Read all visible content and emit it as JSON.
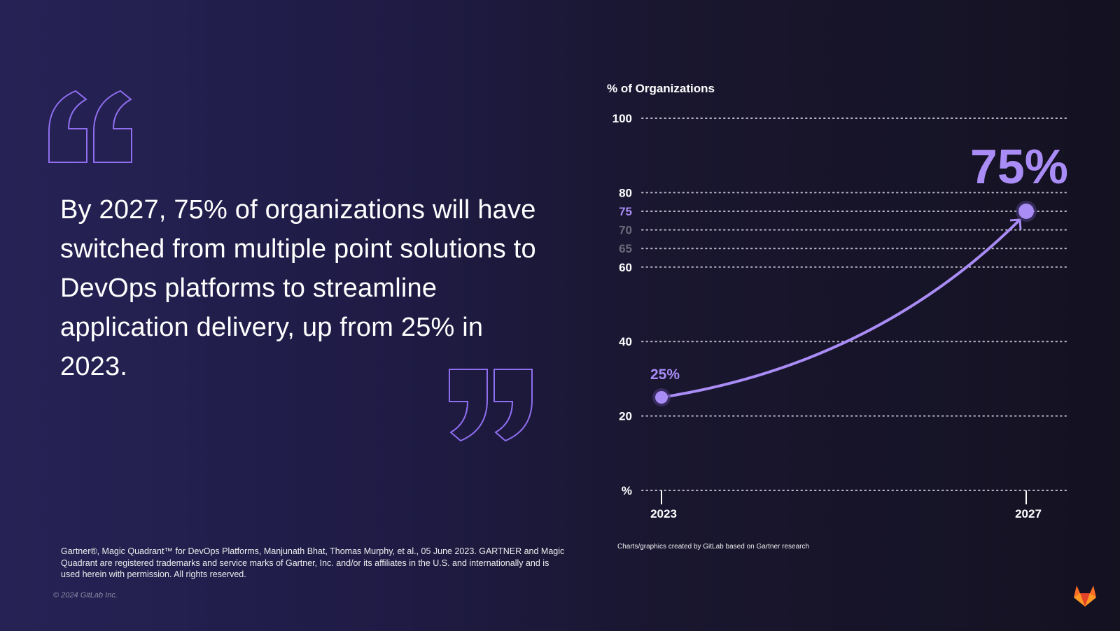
{
  "quote": "By 2027, 75% of organizations will have switched from multiple point solutions to DevOps platforms to streamline application delivery, up from 25% in 2023.",
  "footnote": "Gartner®, Magic Quadrant™ for DevOps Platforms, Manjunath Bhat, Thomas Murphy, et al., 05 June 2023. GARTNER and Magic Quadrant are registered trademarks and service marks of Gartner, Inc. and/or its affiliates in the U.S. and internationally and is used herein with permission. All rights reserved.",
  "copyright": "© 2024 GitLab Inc.",
  "credit": "Charts/graphics created by GitLab based on Gartner research",
  "colors": {
    "accent": "#a98cf5",
    "grid": "#d8d6e6",
    "muted": "#6d6a7c"
  },
  "chart_data": {
    "type": "line",
    "ylabel": "% of Organizations",
    "ylim": [
      0,
      100
    ],
    "yticks": [
      {
        "value": 100,
        "label": "100",
        "style": "normal"
      },
      {
        "value": 80,
        "label": "80",
        "style": "normal"
      },
      {
        "value": 75,
        "label": "75",
        "style": "accent"
      },
      {
        "value": 70,
        "label": "70",
        "style": "muted"
      },
      {
        "value": 65,
        "label": "65",
        "style": "muted"
      },
      {
        "value": 60,
        "label": "60",
        "style": "normal"
      },
      {
        "value": 40,
        "label": "40",
        "style": "normal"
      },
      {
        "value": 20,
        "label": "20",
        "style": "normal"
      },
      {
        "value": 0,
        "label": "%",
        "style": "normal"
      }
    ],
    "x": [
      "2023",
      "2027"
    ],
    "values": [
      25,
      75
    ],
    "data_labels": [
      "25%",
      "75%"
    ],
    "grid": true
  }
}
